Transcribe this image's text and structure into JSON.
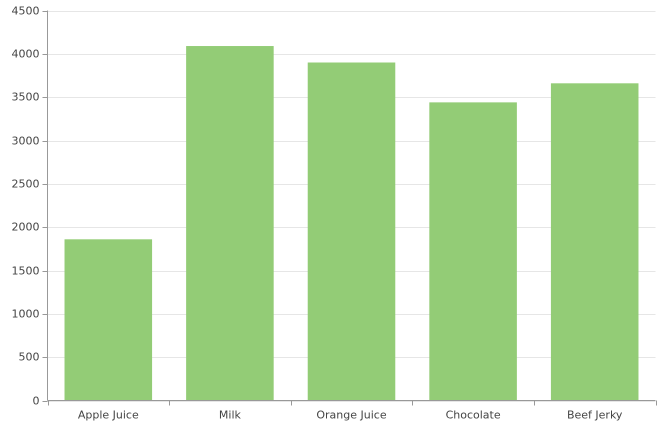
{
  "chart_data": {
    "type": "bar",
    "categories": [
      "Apple Juice",
      "Milk",
      "Orange Juice",
      "Chocolate",
      "Beef Jerky"
    ],
    "values": [
      1860,
      4090,
      3900,
      3440,
      3660
    ],
    "color": "#93cc76",
    "ylim": [
      0,
      4500
    ],
    "yticks": [
      0,
      500,
      1000,
      1500,
      2000,
      2500,
      3000,
      3500,
      4000,
      4500
    ],
    "grid": true
  }
}
